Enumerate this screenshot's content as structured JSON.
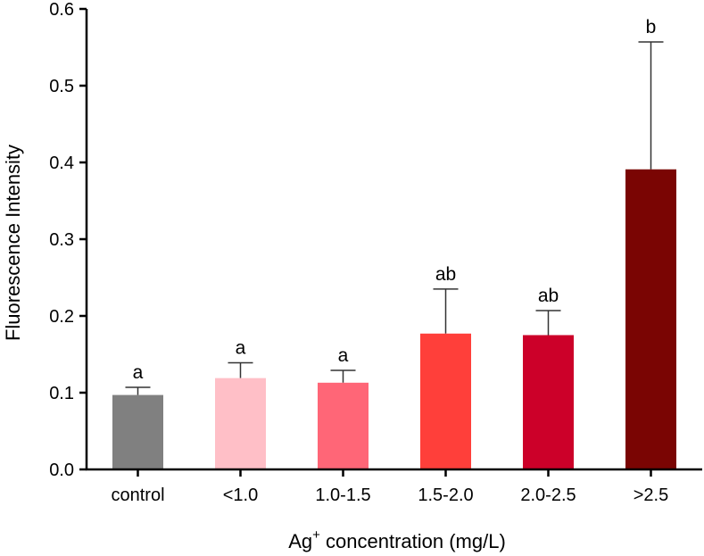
{
  "chart_data": {
    "type": "bar",
    "title": "",
    "xlabel_main": "Ag",
    "xlabel_sup": "+",
    "xlabel_rest": " concentration (mg/L)",
    "ylabel": "Fluorescence Intensity",
    "ylim": [
      0,
      0.6
    ],
    "yticks": [
      "0.0",
      "0.1",
      "0.2",
      "0.3",
      "0.4",
      "0.5",
      "0.6"
    ],
    "categories": [
      "control",
      "<1.0",
      "1.0-1.5",
      "1.5-2.0",
      "2.0-2.5",
      ">2.5"
    ],
    "values": [
      0.097,
      0.119,
      0.113,
      0.177,
      0.175,
      0.391
    ],
    "errors": [
      0.01,
      0.02,
      0.016,
      0.058,
      0.032,
      0.166
    ],
    "significance": [
      "a",
      "a",
      "a",
      "ab",
      "ab",
      "b"
    ],
    "colors": [
      "#808080",
      "#FFBFC7",
      "#FF6677",
      "#FF3F3A",
      "#CC0029",
      "#7A0503"
    ],
    "grid": false
  }
}
